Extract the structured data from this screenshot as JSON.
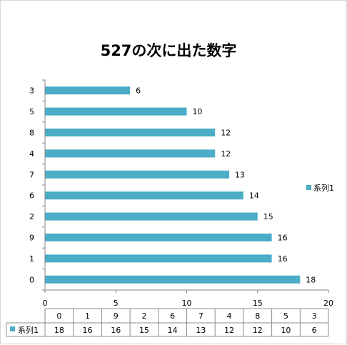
{
  "chart_data": {
    "type": "bar",
    "orientation": "horizontal",
    "title": "527の次に出た数字",
    "categories": [
      "0",
      "1",
      "9",
      "2",
      "6",
      "7",
      "4",
      "8",
      "5",
      "3"
    ],
    "series": [
      {
        "name": "系列1",
        "values": [
          18,
          16,
          16,
          15,
          14,
          13,
          12,
          12,
          10,
          6
        ],
        "color": "#4bacc6"
      }
    ],
    "xlim": [
      0,
      20
    ],
    "xticks": [
      0,
      5,
      10,
      15,
      20
    ],
    "category_order": "bottom-to-top",
    "grid": false,
    "legend": {
      "position": "right",
      "entries": [
        "系列1"
      ]
    },
    "data_table": true,
    "data_labels": true
  }
}
